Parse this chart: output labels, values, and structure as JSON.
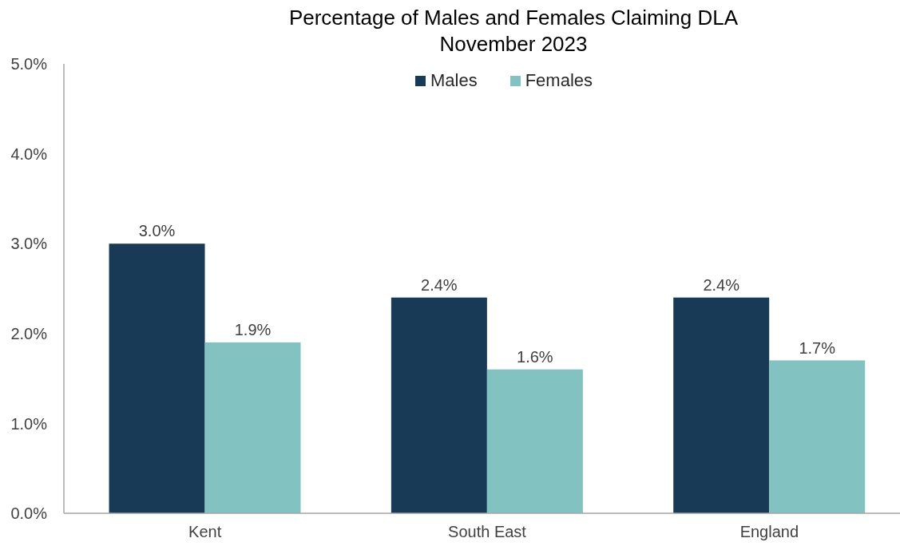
{
  "chart_data": {
    "type": "bar",
    "title": "Percentage of Males and Females Claiming DLA\nNovember 2023",
    "categories": [
      "Kent",
      "South East",
      "England"
    ],
    "series": [
      {
        "name": "Males",
        "color": "#183a56",
        "values": [
          3.0,
          2.4,
          2.4
        ],
        "value_labels": [
          "3.0%",
          "2.4%",
          "2.4%"
        ]
      },
      {
        "name": "Females",
        "color": "#82c2c1",
        "values": [
          1.9,
          1.6,
          1.7
        ],
        "value_labels": [
          "1.9%",
          "1.6%",
          "1.7%"
        ]
      }
    ],
    "ylim": [
      0,
      5
    ],
    "yticks": [
      {
        "value": 0,
        "label": "0.0%"
      },
      {
        "value": 1,
        "label": "1.0%"
      },
      {
        "value": 2,
        "label": "2.0%"
      },
      {
        "value": 3,
        "label": "3.0%"
      },
      {
        "value": 4,
        "label": "4.0%"
      },
      {
        "value": 5,
        "label": "5.0%"
      }
    ],
    "legend": "top"
  }
}
